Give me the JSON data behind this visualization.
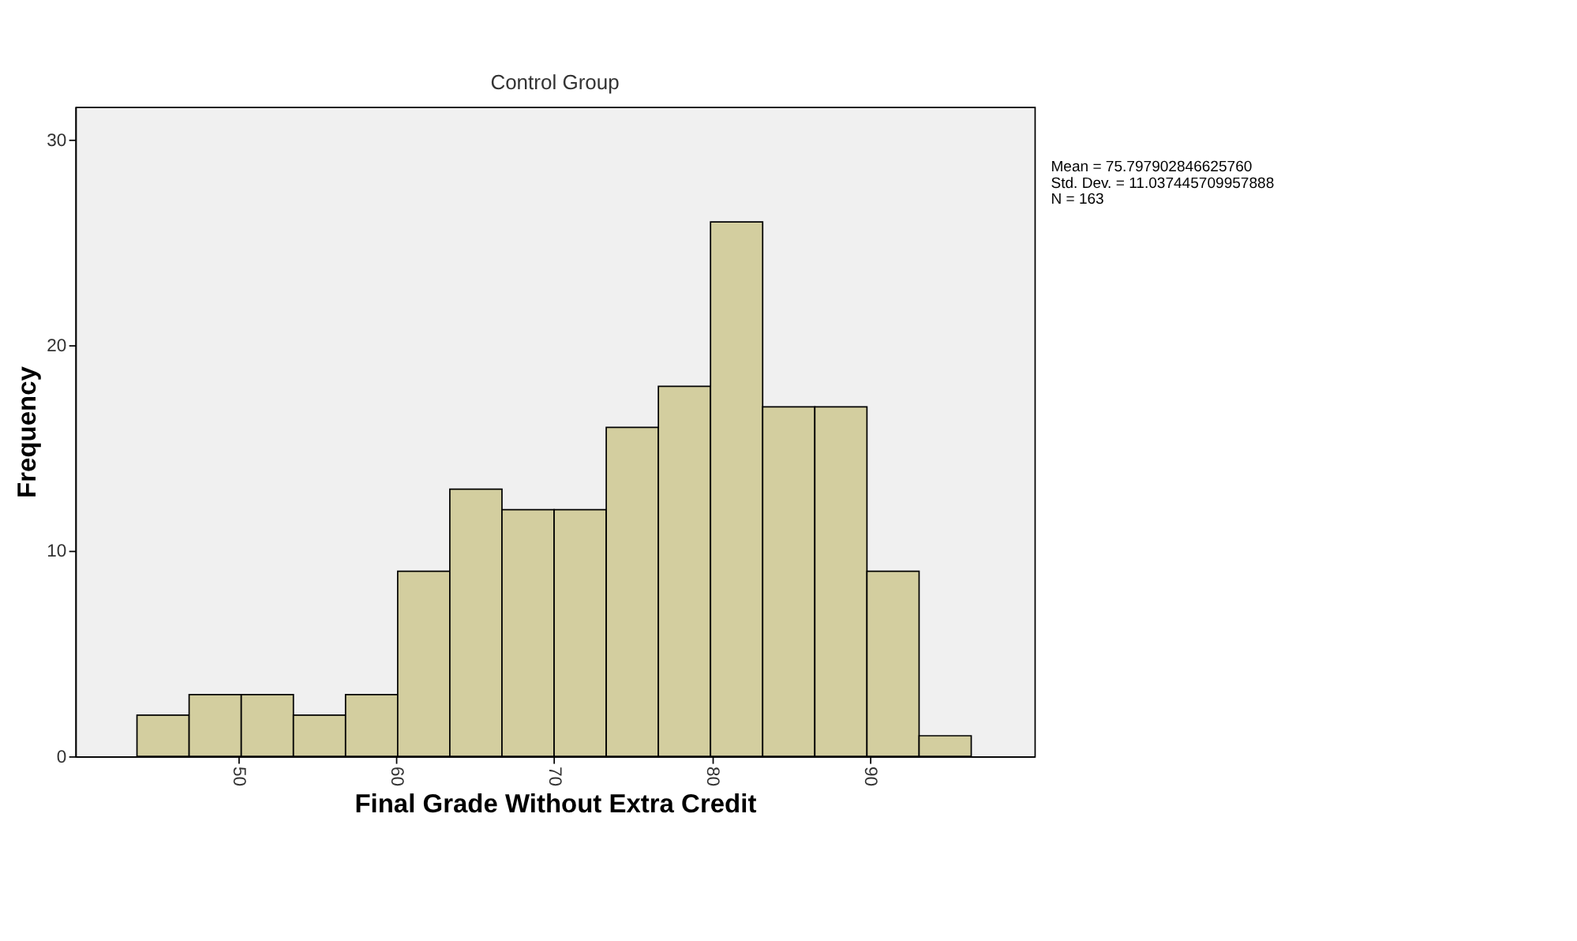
{
  "chart_data": {
    "type": "histogram",
    "title": "Control Group",
    "xlabel": "Final Grade Without Extra Credit",
    "ylabel": "Frequency",
    "bins": [
      43.6,
      46.9,
      50.2,
      53.5,
      56.8,
      60.1,
      63.4,
      66.7,
      70.0,
      73.3,
      76.6,
      79.9,
      83.2,
      86.5,
      89.8,
      93.1,
      96.4
    ],
    "values": [
      2,
      3,
      3,
      2,
      3,
      9,
      13,
      12,
      12,
      16,
      18,
      26,
      17,
      17,
      9,
      1
    ],
    "color": "#d3ce9f",
    "xlim": [
      39.7,
      100.4
    ],
    "xticks": [
      50,
      60,
      70,
      80,
      90
    ],
    "ylim": [
      0,
      31.6
    ],
    "yticks": [
      0,
      10,
      20,
      30
    ],
    "grid": false,
    "annotations": [
      "Mean = 75.797902846625760",
      "Std. Dev. = 11.037445709957888",
      "N = 163"
    ]
  }
}
